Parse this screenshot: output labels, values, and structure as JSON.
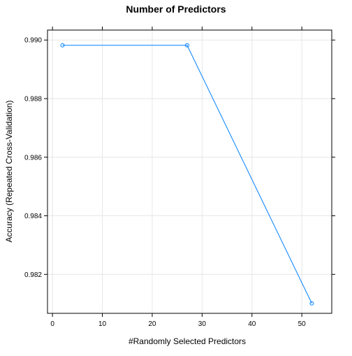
{
  "chart_data": {
    "type": "line",
    "title": "Number of Predictors",
    "xlabel": "#Randomly Selected Predictors",
    "ylabel": "Accuracy (Repeated Cross-Validation)",
    "x": [
      2,
      27,
      52
    ],
    "series": [
      {
        "values": [
          0.98982,
          0.98982,
          0.98101
        ]
      }
    ],
    "xlim": [
      -1,
      56
    ],
    "ylim": [
      0.98067,
      0.99034
    ],
    "xticks": [
      0,
      10,
      20,
      30,
      40,
      50
    ],
    "yticks": [
      0.982,
      0.984,
      0.986,
      0.988,
      0.99
    ],
    "xtick_labels": [
      "0",
      "10",
      "20",
      "30",
      "40",
      "50"
    ],
    "ytick_labels": [
      "0.982",
      "0.984",
      "0.986",
      "0.988",
      "0.990"
    ],
    "grid": true,
    "colors": {
      "series": "#0080ff",
      "grid": "#e6e6e6",
      "axis": "#000000"
    }
  }
}
